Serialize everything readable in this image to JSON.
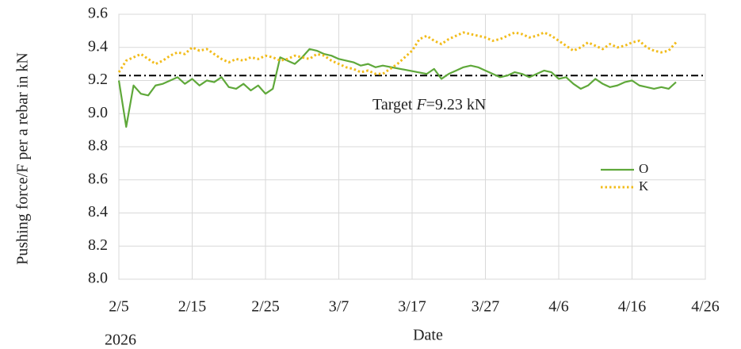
{
  "chart_data": {
    "type": "line",
    "x_label": "Date",
    "y_label": "Pushing force/F per a rebar in kN",
    "year_label": "2026",
    "x": [
      "2026-02-05",
      "2026-02-06",
      "2026-02-07",
      "2026-02-08",
      "2026-02-09",
      "2026-02-10",
      "2026-02-11",
      "2026-02-12",
      "2026-02-13",
      "2026-02-14",
      "2026-02-15",
      "2026-02-16",
      "2026-02-17",
      "2026-02-18",
      "2026-02-19",
      "2026-02-20",
      "2026-02-21",
      "2026-02-22",
      "2026-02-23",
      "2026-02-24",
      "2026-02-25",
      "2026-02-26",
      "2026-02-27",
      "2026-02-28",
      "2026-03-01",
      "2026-03-02",
      "2026-03-03",
      "2026-03-04",
      "2026-03-05",
      "2026-03-06",
      "2026-03-07",
      "2026-03-08",
      "2026-03-09",
      "2026-03-10",
      "2026-03-11",
      "2026-03-12",
      "2026-03-13",
      "2026-03-14",
      "2026-03-15",
      "2026-03-16",
      "2026-03-17",
      "2026-03-18",
      "2026-03-19",
      "2026-03-20",
      "2026-03-21",
      "2026-03-22",
      "2026-03-23",
      "2026-03-24",
      "2026-03-25",
      "2026-03-26",
      "2026-03-27",
      "2026-03-28",
      "2026-03-29",
      "2026-03-30",
      "2026-03-31",
      "2026-04-01",
      "2026-04-02",
      "2026-04-03",
      "2026-04-04",
      "2026-04-05",
      "2026-04-06",
      "2026-04-07",
      "2026-04-08",
      "2026-04-09",
      "2026-04-10",
      "2026-04-11",
      "2026-04-12",
      "2026-04-13",
      "2026-04-14",
      "2026-04-15",
      "2026-04-16",
      "2026-04-17",
      "2026-04-18",
      "2026-04-19",
      "2026-04-20",
      "2026-04-21",
      "2026-04-22"
    ],
    "series": [
      {
        "name": "O",
        "color": "#5fa83a",
        "style": "solid",
        "x": [
          "2026-02-05",
          "2026-02-06",
          "2026-02-07",
          "2026-02-08",
          "2026-02-09",
          "2026-02-10",
          "2026-02-11",
          "2026-02-12",
          "2026-02-13",
          "2026-02-14",
          "2026-02-15",
          "2026-02-16",
          "2026-02-17",
          "2026-02-18",
          "2026-02-19",
          "2026-02-20",
          "2026-02-21",
          "2026-02-22",
          "2026-02-23",
          "2026-02-24",
          "2026-02-25",
          "2026-02-26",
          "2026-02-27",
          "2026-02-28",
          "2026-03-01",
          "2026-03-02",
          "2026-03-03",
          "2026-03-04",
          "2026-03-05",
          "2026-03-06",
          "2026-03-07",
          "2026-03-08",
          "2026-03-09",
          "2026-03-10",
          "2026-03-11",
          "2026-03-12",
          "2026-03-13",
          "2026-03-19",
          "2026-03-20",
          "2026-03-21",
          "2026-03-22",
          "2026-03-23",
          "2026-03-24",
          "2026-03-25",
          "2026-03-26",
          "2026-03-27",
          "2026-03-28",
          "2026-03-29",
          "2026-03-30",
          "2026-03-31",
          "2026-04-01",
          "2026-04-02",
          "2026-04-03",
          "2026-04-04",
          "2026-04-05",
          "2026-04-06",
          "2026-04-07",
          "2026-04-08",
          "2026-04-09",
          "2026-04-10",
          "2026-04-11",
          "2026-04-12",
          "2026-04-13",
          "2026-04-14",
          "2026-04-15",
          "2026-04-16",
          "2026-04-17",
          "2026-04-18",
          "2026-04-19",
          "2026-04-20",
          "2026-04-21",
          "2026-04-22"
        ],
        "values": [
          9.2,
          8.92,
          9.17,
          9.12,
          9.11,
          9.17,
          9.18,
          9.2,
          9.22,
          9.18,
          9.21,
          9.17,
          9.2,
          9.19,
          9.22,
          9.16,
          9.15,
          9.18,
          9.14,
          9.17,
          9.12,
          9.15,
          9.34,
          9.32,
          9.3,
          9.34,
          9.39,
          9.38,
          9.36,
          9.35,
          9.33,
          9.32,
          9.31,
          9.29,
          9.3,
          9.28,
          9.29,
          9.24,
          9.27,
          9.21,
          9.24,
          9.26,
          9.28,
          9.29,
          9.28,
          9.26,
          9.24,
          9.22,
          9.23,
          9.25,
          9.24,
          9.22,
          9.24,
          9.26,
          9.25,
          9.21,
          9.22,
          9.18,
          9.15,
          9.17,
          9.21,
          9.18,
          9.16,
          9.17,
          9.19,
          9.2,
          9.17,
          9.16,
          9.15,
          9.16,
          9.15,
          9.19
        ]
      },
      {
        "name": "K",
        "color": "#f2bc1b",
        "style": "dotted",
        "values": [
          9.25,
          9.32,
          9.34,
          9.36,
          9.33,
          9.3,
          9.32,
          9.35,
          9.37,
          9.36,
          9.4,
          9.38,
          9.39,
          9.36,
          9.33,
          9.31,
          9.33,
          9.32,
          9.34,
          9.33,
          9.35,
          9.34,
          9.32,
          9.33,
          9.35,
          9.34,
          9.33,
          9.36,
          9.35,
          9.32,
          9.3,
          9.28,
          9.27,
          9.25,
          9.26,
          9.24,
          9.24,
          9.27,
          9.3,
          9.34,
          9.38,
          9.45,
          9.47,
          9.44,
          9.42,
          9.45,
          9.47,
          9.49,
          9.48,
          9.47,
          9.46,
          9.44,
          9.45,
          9.47,
          9.49,
          9.48,
          9.46,
          9.47,
          9.49,
          9.47,
          9.44,
          9.41,
          9.38,
          9.4,
          9.43,
          9.41,
          9.39,
          9.42,
          9.4,
          9.41,
          9.43,
          9.44,
          9.4,
          9.38,
          9.37,
          9.38,
          9.43
        ]
      }
    ],
    "target": {
      "value": 9.23,
      "label": [
        "Target ",
        "F",
        "=9.23 kN"
      ]
    },
    "xlim": [
      "2026-02-05",
      "2026-04-26"
    ],
    "xticks": [
      {
        "value": "2026-02-05",
        "label": "2/5"
      },
      {
        "value": "2026-02-15",
        "label": "2/15"
      },
      {
        "value": "2026-02-25",
        "label": "2/25"
      },
      {
        "value": "2026-03-07",
        "label": "3/7"
      },
      {
        "value": "2026-03-17",
        "label": "3/17"
      },
      {
        "value": "2026-03-27",
        "label": "3/27"
      },
      {
        "value": "2026-04-06",
        "label": "4/6"
      },
      {
        "value": "2026-04-16",
        "label": "4/16"
      },
      {
        "value": "2026-04-26",
        "label": "4/26"
      }
    ],
    "ylim": [
      8.0,
      9.6
    ],
    "yticks": [
      {
        "value": 8.0,
        "label": "8.0"
      },
      8.2,
      8.4,
      8.6,
      8.8,
      {
        "value": 9.0,
        "label": "9.0"
      },
      9.2,
      9.4,
      9.6
    ],
    "grid": true,
    "legend": "right"
  }
}
